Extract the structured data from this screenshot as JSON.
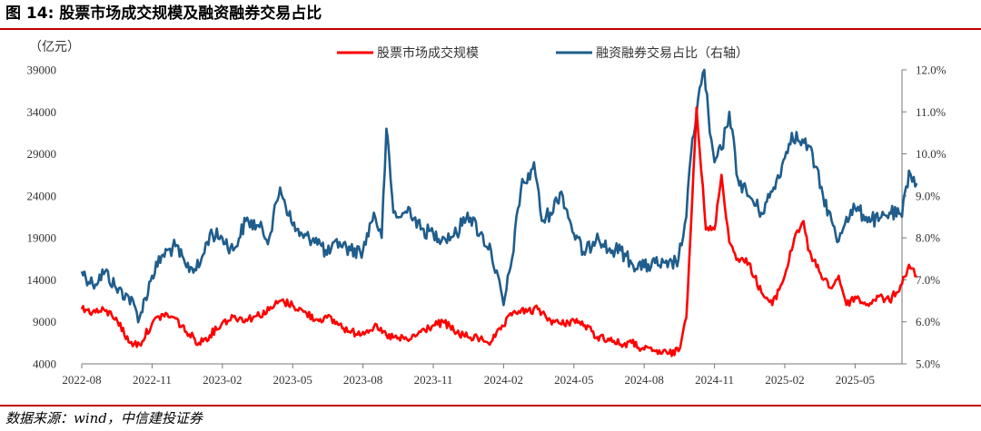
{
  "figure": {
    "title": "图 14: 股票市场成交规模及融资融券交易占比",
    "source": "数据来源：wind，中信建投证券"
  },
  "chart_data": {
    "type": "line",
    "unit_left": "（亿元）",
    "xlabel": "",
    "ylabel": "",
    "x_range": [
      "2022-08",
      "2025-07"
    ],
    "x_ticks": [
      "2022-08",
      "2022-11",
      "2023-02",
      "2023-05",
      "2023-08",
      "2023-11",
      "2024-02",
      "2024-05",
      "2024-08",
      "2024-11",
      "2025-02",
      "2025-05"
    ],
    "y_left": {
      "min": 4000,
      "max": 39000,
      "ticks": [
        4000,
        9000,
        14000,
        19000,
        24000,
        29000,
        34000,
        39000
      ]
    },
    "y_right": {
      "min": 5.0,
      "max": 12.0,
      "ticks": [
        "5.0%",
        "6.0%",
        "7.0%",
        "8.0%",
        "9.0%",
        "10.0%",
        "11.0%",
        "12.0%"
      ]
    },
    "grid": false,
    "legend_position": "top-center",
    "series": [
      {
        "name": "股票市场成交规模",
        "axis": "left",
        "color": "#ff0000",
        "points": [
          [
            "2022-08",
            10500
          ],
          [
            "2022-08-15",
            10200
          ],
          [
            "2022-09",
            10300
          ],
          [
            "2022-09-15",
            9500
          ],
          [
            "2022-10",
            6600
          ],
          [
            "2022-10-15",
            6300
          ],
          [
            "2022-11",
            8800
          ],
          [
            "2022-11-15",
            9900
          ],
          [
            "2022-12",
            9400
          ],
          [
            "2022-12-15",
            7800
          ],
          [
            "2023-01",
            6500
          ],
          [
            "2023-01-15",
            7400
          ],
          [
            "2023-02",
            8900
          ],
          [
            "2023-02-15",
            9600
          ],
          [
            "2023-03",
            9300
          ],
          [
            "2023-03-15",
            9700
          ],
          [
            "2023-04",
            10400
          ],
          [
            "2023-04-15",
            11500
          ],
          [
            "2023-05",
            11000
          ],
          [
            "2023-05-15",
            10200
          ],
          [
            "2023-06",
            9300
          ],
          [
            "2023-06-15",
            9500
          ],
          [
            "2023-07",
            8700
          ],
          [
            "2023-07-15",
            7700
          ],
          [
            "2023-08",
            7800
          ],
          [
            "2023-08-15",
            8400
          ],
          [
            "2023-09",
            7400
          ],
          [
            "2023-09-15",
            7000
          ],
          [
            "2023-10",
            6900
          ],
          [
            "2023-10-15",
            7800
          ],
          [
            "2023-11",
            8600
          ],
          [
            "2023-11-15",
            8900
          ],
          [
            "2023-12",
            7700
          ],
          [
            "2023-12-15",
            7200
          ],
          [
            "2024-01",
            7000
          ],
          [
            "2024-01-15",
            6600
          ],
          [
            "2024-02",
            8500
          ],
          [
            "2024-02-15",
            10300
          ],
          [
            "2024-03",
            10200
          ],
          [
            "2024-03-15",
            10500
          ],
          [
            "2024-04",
            9200
          ],
          [
            "2024-04-15",
            8700
          ],
          [
            "2024-05",
            9200
          ],
          [
            "2024-05-15",
            8600
          ],
          [
            "2024-06",
            7200
          ],
          [
            "2024-06-15",
            7000
          ],
          [
            "2024-07",
            6300
          ],
          [
            "2024-07-15",
            6500
          ],
          [
            "2024-08",
            5700
          ],
          [
            "2024-08-15",
            5500
          ],
          [
            "2024-09",
            5200
          ],
          [
            "2024-09-15",
            5500
          ],
          [
            "2024-09-25",
            9500
          ],
          [
            "2024-10-08",
            34500
          ],
          [
            "2024-10-20",
            20000
          ],
          [
            "2024-11",
            20000
          ],
          [
            "2024-11-10",
            26500
          ],
          [
            "2024-11-20",
            18500
          ],
          [
            "2024-12",
            16500
          ],
          [
            "2024-12-15",
            16000
          ],
          [
            "2025-01",
            12500
          ],
          [
            "2025-01-15",
            11000
          ],
          [
            "2025-02",
            14500
          ],
          [
            "2025-02-15",
            19500
          ],
          [
            "2025-02-25",
            21000
          ],
          [
            "2025-03",
            17500
          ],
          [
            "2025-03-15",
            15000
          ],
          [
            "2025-04",
            13000
          ],
          [
            "2025-04-10",
            14500
          ],
          [
            "2025-04-20",
            11000
          ],
          [
            "2025-05",
            12000
          ],
          [
            "2025-05-15",
            11000
          ],
          [
            "2025-06",
            12000
          ],
          [
            "2025-06-15",
            11500
          ],
          [
            "2025-07",
            13500
          ],
          [
            "2025-07-10",
            15800
          ],
          [
            "2025-07-20",
            14500
          ]
        ]
      },
      {
        "name": "融资融券交易占比（右轴）",
        "axis": "right",
        "color": "#1f5d8c",
        "points": [
          [
            "2022-08",
            7.2
          ],
          [
            "2022-08-15",
            6.9
          ],
          [
            "2022-09",
            7.2
          ],
          [
            "2022-09-15",
            6.8
          ],
          [
            "2022-10",
            6.6
          ],
          [
            "2022-10-15",
            6.1
          ],
          [
            "2022-11",
            7.1
          ],
          [
            "2022-11-15",
            7.6
          ],
          [
            "2022-12",
            7.8
          ],
          [
            "2022-12-15",
            7.3
          ],
          [
            "2023-01",
            7.3
          ],
          [
            "2023-01-15",
            8.1
          ],
          [
            "2023-02",
            8.0
          ],
          [
            "2023-02-15",
            7.7
          ],
          [
            "2023-03",
            8.4
          ],
          [
            "2023-03-15",
            8.3
          ],
          [
            "2023-04",
            8.0
          ],
          [
            "2023-04-15",
            9.2
          ],
          [
            "2023-05",
            8.3
          ],
          [
            "2023-05-15",
            8.0
          ],
          [
            "2023-06",
            8.0
          ],
          [
            "2023-06-15",
            7.6
          ],
          [
            "2023-07",
            7.9
          ],
          [
            "2023-07-15",
            7.7
          ],
          [
            "2023-08",
            7.7
          ],
          [
            "2023-08-15",
            8.6
          ],
          [
            "2023-08-25",
            8.0
          ],
          [
            "2023-09",
            10.6
          ],
          [
            "2023-09-10",
            8.6
          ],
          [
            "2023-09-20",
            8.5
          ],
          [
            "2023-10",
            8.7
          ],
          [
            "2023-10-15",
            8.2
          ],
          [
            "2023-11",
            8.1
          ],
          [
            "2023-11-15",
            8.0
          ],
          [
            "2023-12",
            8.1
          ],
          [
            "2023-12-15",
            8.6
          ],
          [
            "2024-01",
            8.1
          ],
          [
            "2024-01-15",
            7.7
          ],
          [
            "2024-02",
            6.4
          ],
          [
            "2024-02-10",
            7.3
          ],
          [
            "2024-02-25",
            9.4
          ],
          [
            "2024-03",
            9.3
          ],
          [
            "2024-03-10",
            9.8
          ],
          [
            "2024-03-20",
            8.4
          ],
          [
            "2024-04",
            8.6
          ],
          [
            "2024-04-15",
            9.1
          ],
          [
            "2024-05",
            8.1
          ],
          [
            "2024-05-15",
            7.6
          ],
          [
            "2024-06",
            8.1
          ],
          [
            "2024-06-15",
            7.7
          ],
          [
            "2024-07",
            7.7
          ],
          [
            "2024-07-15",
            7.4
          ],
          [
            "2024-08",
            7.3
          ],
          [
            "2024-08-15",
            7.4
          ],
          [
            "2024-09",
            7.3
          ],
          [
            "2024-09-15",
            7.5
          ],
          [
            "2024-09-25",
            8.5
          ],
          [
            "2024-10",
            10.0
          ],
          [
            "2024-10-10",
            11.3
          ],
          [
            "2024-10-18",
            12.0
          ],
          [
            "2024-10-25",
            10.5
          ],
          [
            "2024-11",
            9.8
          ],
          [
            "2024-11-10",
            10.1
          ],
          [
            "2024-11-20",
            11.0
          ],
          [
            "2024-12",
            9.4
          ],
          [
            "2024-12-15",
            9.0
          ],
          [
            "2025-01",
            8.6
          ],
          [
            "2025-01-15",
            9.1
          ],
          [
            "2025-02",
            9.9
          ],
          [
            "2025-02-10",
            10.5
          ],
          [
            "2025-02-20",
            10.3
          ],
          [
            "2025-03",
            10.2
          ],
          [
            "2025-03-10",
            9.7
          ],
          [
            "2025-03-20",
            9.0
          ],
          [
            "2025-04",
            8.4
          ],
          [
            "2025-04-08",
            7.9
          ],
          [
            "2025-04-20",
            8.5
          ],
          [
            "2025-05",
            8.7
          ],
          [
            "2025-05-15",
            8.5
          ],
          [
            "2025-06",
            8.4
          ],
          [
            "2025-06-15",
            8.6
          ],
          [
            "2025-07",
            8.5
          ],
          [
            "2025-07-10",
            9.6
          ],
          [
            "2025-07-20",
            9.3
          ]
        ]
      }
    ]
  }
}
